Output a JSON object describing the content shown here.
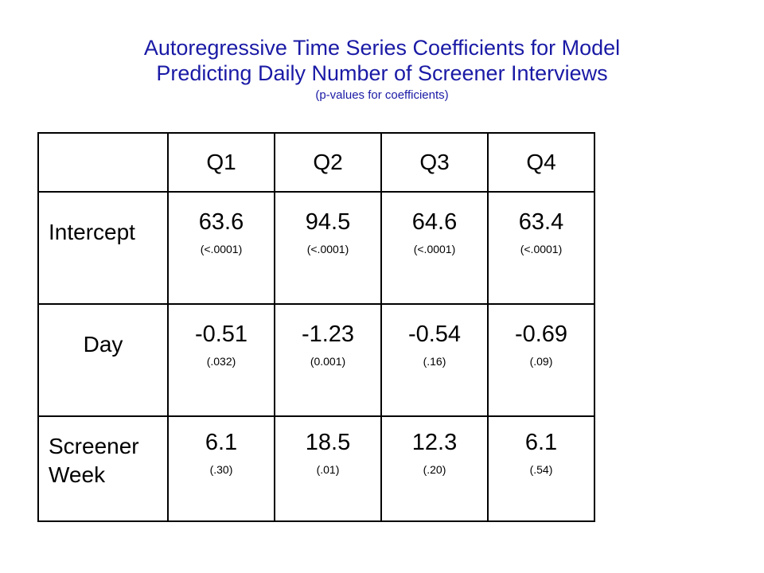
{
  "title": {
    "line1": "Autoregressive Time Series Coefficients for Model",
    "line2": "Predicting Daily Number of Screener Interviews",
    "subtitle": "(p-values for coefficients)"
  },
  "table": {
    "header": [
      "",
      "Q1",
      "Q2",
      "Q3",
      "Q4"
    ],
    "rows": [
      {
        "label": "Intercept",
        "cells": [
          {
            "value": "63.6",
            "p": "(<.0001)"
          },
          {
            "value": "94.5",
            "p": "(<.0001)"
          },
          {
            "value": "64.6",
            "p": "(<.0001)"
          },
          {
            "value": "63.4",
            "p": "(<.0001)"
          }
        ]
      },
      {
        "label": "Day",
        "cells": [
          {
            "value": "-0.51",
            "p": "(.032)"
          },
          {
            "value": "-1.23",
            "p": "(0.001)"
          },
          {
            "value": "-0.54",
            "p": "(.16)"
          },
          {
            "value": "-0.69",
            "p": "(.09)"
          }
        ]
      },
      {
        "label_line1": "Screener",
        "label_line2": "Week",
        "cells": [
          {
            "value": "6.1",
            "p": "(.30)"
          },
          {
            "value": "18.5",
            "p": "(.01)"
          },
          {
            "value": "12.3",
            "p": "(.20)"
          },
          {
            "value": "6.1",
            "p": "(.54)"
          }
        ]
      }
    ]
  },
  "colors": {
    "title": "#1a1aa6",
    "highlight": "#e01010",
    "border": "#000000"
  }
}
